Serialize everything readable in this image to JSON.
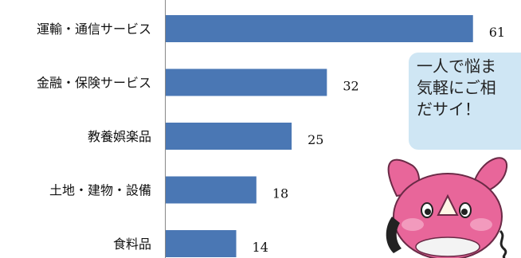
{
  "chart_data": {
    "type": "bar",
    "orientation": "horizontal",
    "categories": [
      "運輸・通信サービス",
      "金融・保険サービス",
      "教養娯楽品",
      "土地・建物・設備",
      "食料品"
    ],
    "values": [
      61,
      32,
      25,
      18,
      14
    ],
    "title": "",
    "xlabel": "",
    "ylabel": "",
    "xlim": [
      0,
      68
    ],
    "bar_color": "#4a77b4",
    "grid": false,
    "legend": "none"
  },
  "bubble": {
    "line1": "一人で悩ま",
    "line2": "気軽にご相",
    "line3": "だサイ！"
  },
  "mascot": {
    "icon": "pink-rhino-mascot-with-phone",
    "color": "#e8669a"
  }
}
